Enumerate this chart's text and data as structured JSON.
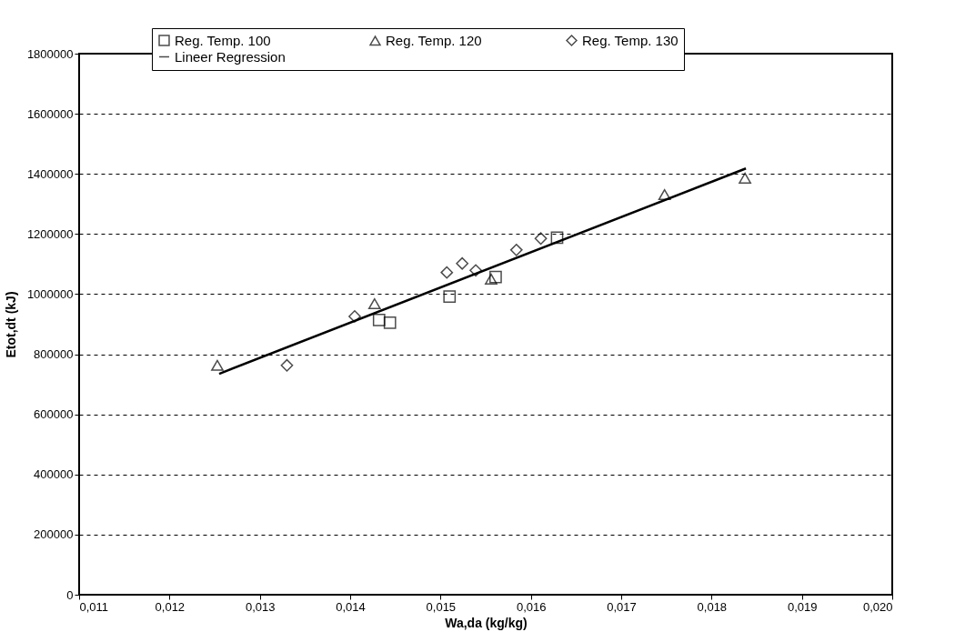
{
  "chart_data": {
    "type": "scatter",
    "xlabel": "Wa,da (kg/kg)",
    "ylabel": "Etot,dt (kJ)",
    "xlim": [
      0.011,
      0.02
    ],
    "xticks": [
      {
        "value": 0.011,
        "label": "0,011"
      },
      {
        "value": 0.012,
        "label": "0,012"
      },
      {
        "value": 0.013,
        "label": "0,013"
      },
      {
        "value": 0.014,
        "label": "0,014"
      },
      {
        "value": 0.015,
        "label": "0,015"
      },
      {
        "value": 0.016,
        "label": "0,016"
      },
      {
        "value": 0.017,
        "label": "0,017"
      },
      {
        "value": 0.018,
        "label": "0,018"
      },
      {
        "value": 0.019,
        "label": "0,019"
      },
      {
        "value": 0.02,
        "label": "0,020"
      }
    ],
    "ylim": [
      0,
      1800000
    ],
    "yticks": [
      0,
      200000,
      400000,
      600000,
      800000,
      1000000,
      1200000,
      1400000,
      1600000,
      1800000
    ],
    "grid": "y",
    "legend": "top",
    "series": [
      {
        "name": "Reg. Temp. 100",
        "color": "#000000",
        "marker": "square",
        "x": [
          0.01432,
          0.01444,
          0.0151,
          0.01561,
          0.01629
        ],
        "values": [
          914000,
          905000,
          992000,
          1057000,
          1188000
        ]
      },
      {
        "name": "Reg. Temp. 120",
        "color": "#000000",
        "marker": "triangle",
        "x": [
          0.01253,
          0.01427,
          0.01556,
          0.01748,
          0.01837
        ],
        "values": [
          763000,
          968000,
          1050000,
          1331000,
          1386000
        ]
      },
      {
        "name": "Reg. Temp. 130",
        "color": "#000000",
        "marker": "diamond",
        "x": [
          0.0133,
          0.01405,
          0.01507,
          0.01524,
          0.01539,
          0.01584,
          0.01611
        ],
        "values": [
          763000,
          926000,
          1072000,
          1102000,
          1079000,
          1147000,
          1185000
        ]
      },
      {
        "name": "Lineer Regression",
        "color": "#000000",
        "type": "line",
        "marker": "none",
        "line_style": "solid",
        "x": [
          0.01255,
          0.01838
        ],
        "values": [
          735000,
          1418000
        ]
      }
    ]
  }
}
